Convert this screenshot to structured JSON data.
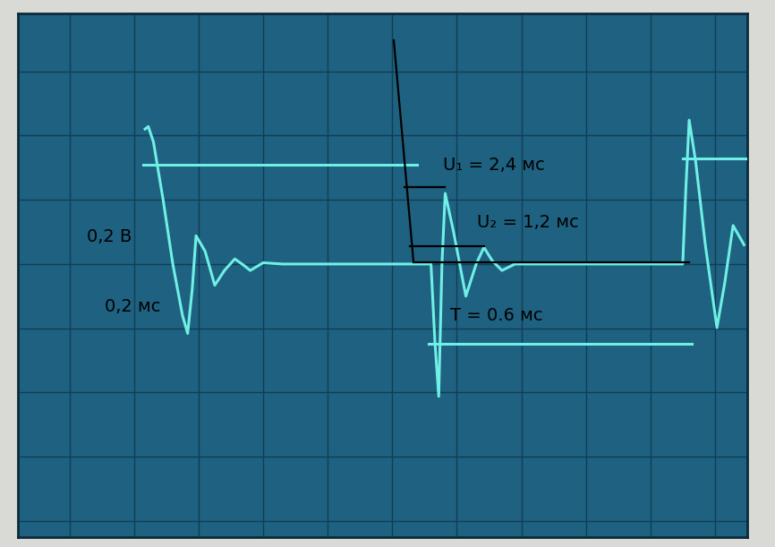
{
  "chart_data": {
    "type": "line",
    "xlim": [
      -0.8,
      10.5
    ],
    "ylim": [
      -4.25,
      3.9
    ],
    "xticks": [
      0,
      1,
      2,
      3,
      4,
      5,
      6,
      7,
      8,
      9,
      10
    ],
    "yticks": [
      -4,
      -3,
      -2,
      -1,
      0,
      1,
      2,
      3
    ],
    "grid": true,
    "tick_labels": false,
    "annotations": [
      "U₁ = 2,4 мс",
      "U₂ = 1,2 мс",
      "T = 0.6 мс",
      "0,2 В",
      "0,2 мс"
    ],
    "series": [
      {
        "color": "#6ff0e6",
        "x": [
          1.17,
          1.22,
          1.3,
          1.45,
          1.6,
          1.75,
          1.83,
          1.9,
          1.96,
          2.1,
          2.25,
          2.4,
          2.56,
          2.7,
          2.8,
          3.0,
          3.3,
          4.0,
          5.0,
          5.6,
          5.66,
          5.72,
          5.77,
          5.82,
          5.95,
          6.14,
          6.3,
          6.42,
          6.55,
          6.7,
          6.9,
          7.2,
          8.0,
          9.0,
          9.5,
          9.55,
          9.6,
          9.7,
          9.85,
          10.03,
          10.15,
          10.28,
          10.45
        ],
        "values": [
          2.1,
          2.14,
          1.9,
          1.0,
          0.0,
          -0.8,
          -1.08,
          -0.4,
          0.44,
          0.2,
          -0.33,
          -0.1,
          0.08,
          -0.02,
          -0.1,
          0.02,
          0,
          0,
          0,
          0,
          -1.2,
          -2.06,
          0,
          1.1,
          0.5,
          -0.5,
          0,
          0.26,
          0.05,
          -0.1,
          0,
          0,
          0,
          0,
          0,
          1.2,
          2.24,
          1.6,
          0.3,
          -0.99,
          -0.3,
          0.6,
          0.3
        ]
      },
      {
        "color": "#6ff0e6",
        "x": [
          1.14,
          5.38
        ],
        "values": [
          1.54,
          1.54
        ]
      },
      {
        "color": "#6ff0e6",
        "x": [
          5.56,
          9.64
        ],
        "values": [
          -1.24,
          -1.24
        ]
      },
      {
        "color": "#6ff0e6",
        "x": [
          9.5,
          10.5
        ],
        "values": [
          1.64,
          1.64
        ]
      }
    ]
  }
}
